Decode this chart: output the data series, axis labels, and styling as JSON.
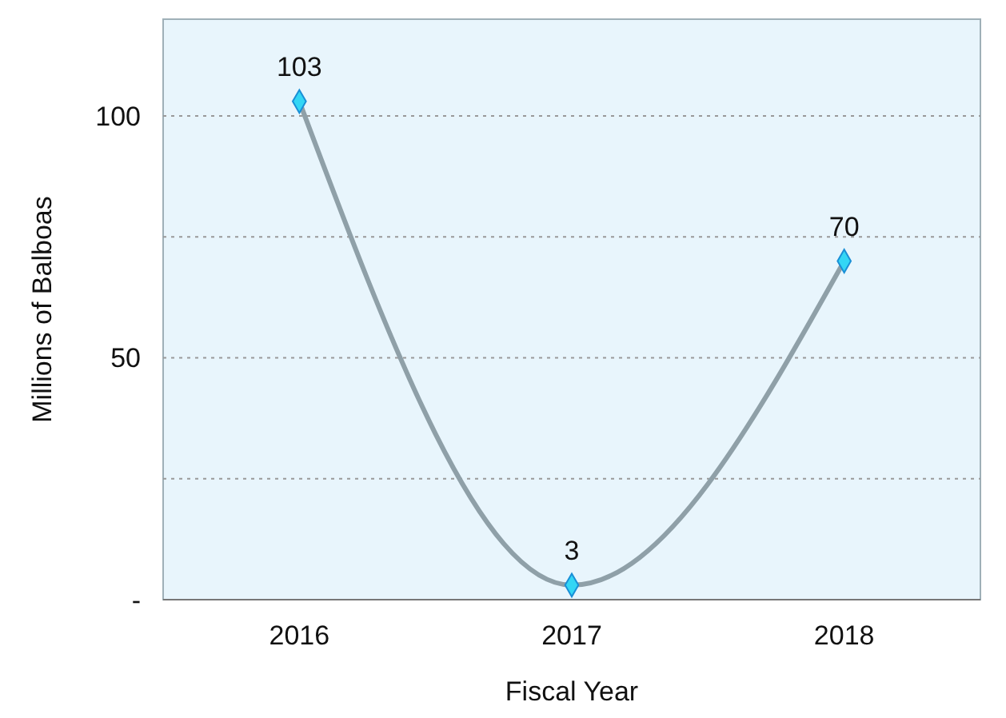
{
  "chart_data": {
    "type": "line",
    "xlabel": "Fiscal Year",
    "ylabel": "Millions of Balboas",
    "categories": [
      "2016",
      "2017",
      "2018"
    ],
    "series": [
      {
        "color": "#8fa0a8",
        "values": [
          103,
          3,
          70
        ]
      }
    ],
    "ylim": [
      0,
      120
    ],
    "yticks": [
      {
        "value": 0,
        "label": "-"
      },
      {
        "value": 25,
        "label": null
      },
      50,
      {
        "value": 75,
        "label": null
      },
      100
    ],
    "grid": "y",
    "marker": "diamond",
    "data_labels": true
  }
}
